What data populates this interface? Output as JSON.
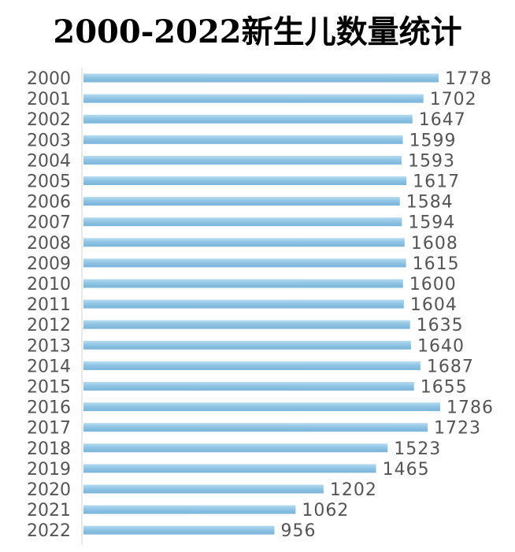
{
  "chart_data": {
    "type": "bar",
    "orientation": "horizontal",
    "title": "2000-2022新生儿数量统计",
    "categories": [
      "2000",
      "2001",
      "2002",
      "2003",
      "2004",
      "2005",
      "2006",
      "2007",
      "2008",
      "2009",
      "2010",
      "2011",
      "2012",
      "2013",
      "2014",
      "2015",
      "2016",
      "2017",
      "2018",
      "2019",
      "2020",
      "2021",
      "2022"
    ],
    "values": [
      1778,
      1702,
      1647,
      1599,
      1593,
      1617,
      1584,
      1594,
      1608,
      1615,
      1600,
      1604,
      1635,
      1640,
      1687,
      1655,
      1786,
      1723,
      1523,
      1465,
      1202,
      1062,
      956
    ],
    "xlim": [
      0,
      1800
    ],
    "grid": false,
    "legend": "none",
    "bar_color": "#8ec3e3"
  }
}
